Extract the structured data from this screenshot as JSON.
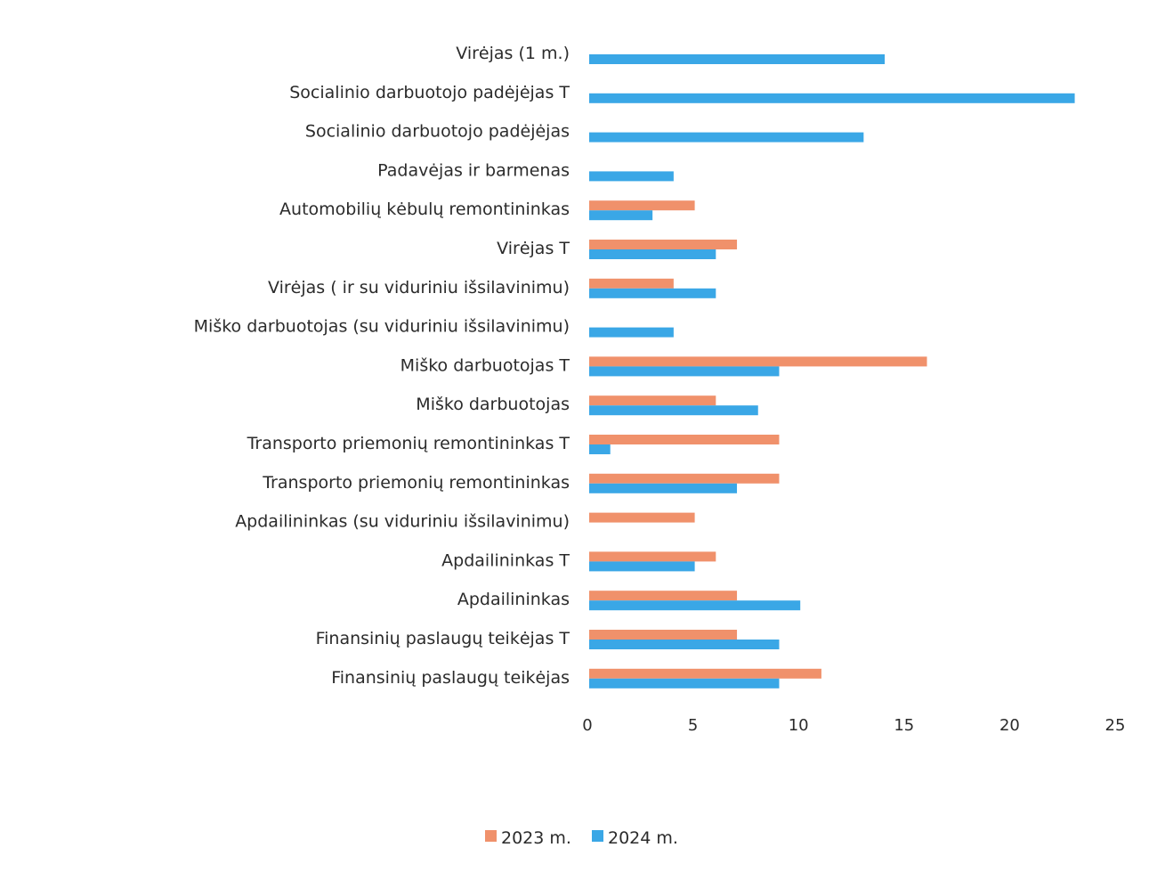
{
  "chart_data": {
    "type": "bar",
    "orientation": "horizontal",
    "categories": [
      "Virėjas (1 m.)",
      "Socialinio darbuotojo padėjėjas T",
      "Socialinio darbuotojo padėjėjas",
      "Padavėjas ir barmenas",
      "Automobilių kėbulų remontininkas",
      "Virėjas T",
      "Virėjas ( ir su viduriniu išsilavinimu)",
      "Miško darbuotojas (su viduriniu išsilavinimu)",
      "Miško darbuotojas T",
      "Miško darbuotojas",
      "Transporto priemonių remontininkas T",
      "Transporto priemonių remontininkas",
      "Apdailininkas (su viduriniu išsilavinimu)",
      "Apdailininkas T",
      "Apdailininkas",
      "Finansinių paslaugų teikėjas T",
      "Finansinių paslaugų teikėjas"
    ],
    "series": [
      {
        "name": "2023 m.",
        "color": "#f0916b",
        "values": [
          0,
          0,
          0,
          0,
          5,
          7,
          4,
          0,
          16,
          6,
          9,
          9,
          5,
          6,
          7,
          7,
          11
        ]
      },
      {
        "name": "2024 m.",
        "color": "#3aa7e6",
        "values": [
          14,
          23,
          13,
          4,
          3,
          6,
          6,
          4,
          9,
          8,
          1,
          7,
          0,
          5,
          10,
          9,
          9
        ]
      }
    ],
    "xlim": [
      0,
      25
    ],
    "xticks": [
      "0",
      "5",
      "10",
      "15",
      "20",
      "25"
    ],
    "grid": false,
    "legend_position": "bottom",
    "title": "",
    "xlabel": "",
    "ylabel": ""
  }
}
